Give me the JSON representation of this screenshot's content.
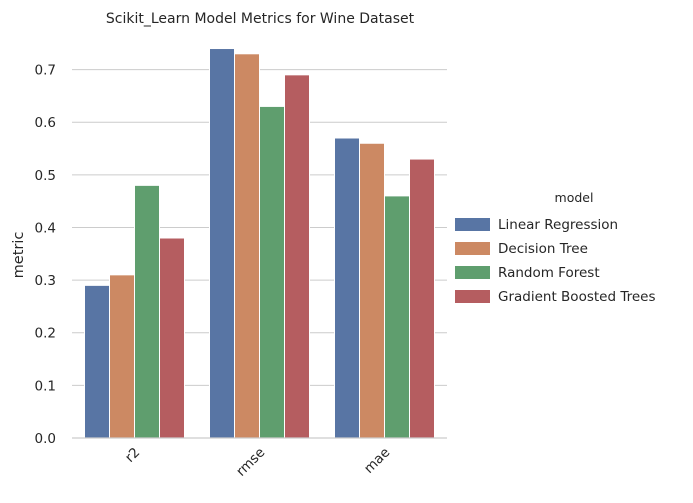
{
  "chart_data": {
    "type": "bar",
    "title": "Scikit_Learn Model Metrics for Wine Dataset",
    "xlabel": "",
    "ylabel": "metric",
    "categories": [
      "r2",
      "rmse",
      "mae"
    ],
    "series": [
      {
        "name": "Linear Regression",
        "color": "#5875a4",
        "values": [
          0.29,
          0.74,
          0.57
        ]
      },
      {
        "name": "Decision Tree",
        "color": "#cc8963",
        "values": [
          0.31,
          0.73,
          0.56
        ]
      },
      {
        "name": "Random Forest",
        "color": "#5f9e6e",
        "values": [
          0.48,
          0.63,
          0.46
        ]
      },
      {
        "name": "Gradient Boosted Trees",
        "color": "#b55d60",
        "values": [
          0.38,
          0.69,
          0.53
        ]
      }
    ],
    "ylim": [
      0,
      0.76
    ],
    "yticks": [
      0.0,
      0.1,
      0.2,
      0.3,
      0.4,
      0.5,
      0.6,
      0.7
    ],
    "ytick_labels": [
      "0.0",
      "0.1",
      "0.2",
      "0.3",
      "0.4",
      "0.5",
      "0.6",
      "0.7"
    ],
    "grid": "horizontal",
    "legend": {
      "title": "model",
      "placement": "right"
    }
  }
}
